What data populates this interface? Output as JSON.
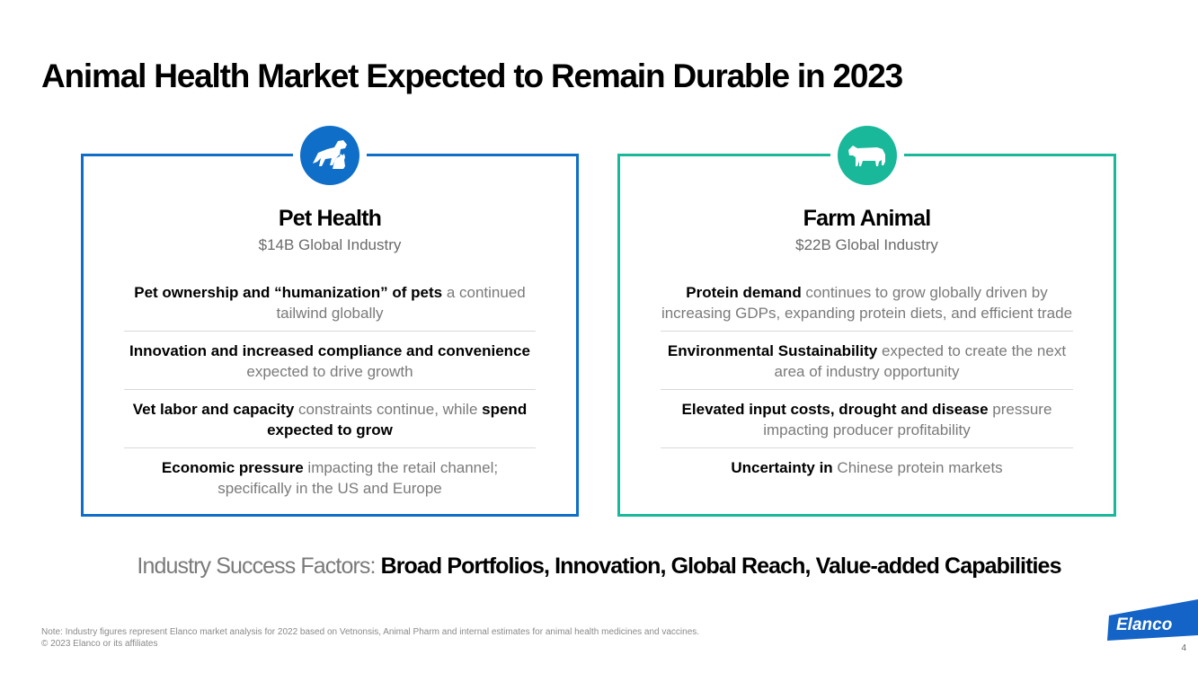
{
  "title": "Animal Health Market Expected to Remain Durable in 2023",
  "colors": {
    "pet_blue": "#0f6ec8",
    "farm_teal": "#19b89a",
    "elanco_blue": "#1463c6"
  },
  "cards": [
    {
      "icon": "dog-cat-icon",
      "title": "Pet Health",
      "subtitle": "$14B Global Industry",
      "items": [
        {
          "parts": [
            {
              "text": "Pet ownership and “humanization” of pets",
              "bold": true
            },
            {
              "text": " a continued tailwind globally",
              "bold": false
            }
          ]
        },
        {
          "parts": [
            {
              "text": "Innovation and increased compliance and convenience",
              "bold": true
            },
            {
              "text": " expected to drive growth",
              "bold": false
            }
          ]
        },
        {
          "parts": [
            {
              "text": "Vet labor and capacity",
              "bold": true
            },
            {
              "text": " constraints continue, while ",
              "bold": false
            },
            {
              "text": "spend expected to grow",
              "bold": true
            }
          ]
        },
        {
          "parts": [
            {
              "text": "Economic pressure",
              "bold": true
            },
            {
              "text": " impacting the retail channel; specifically in the US and Europe",
              "bold": false
            }
          ]
        }
      ]
    },
    {
      "icon": "cow-icon",
      "title": "Farm Animal",
      "subtitle": "$22B Global Industry",
      "items": [
        {
          "parts": [
            {
              "text": "Protein demand",
              "bold": true
            },
            {
              "text": " continues to grow globally driven by increasing GDPs, expanding protein diets, and efficient trade",
              "bold": false
            }
          ]
        },
        {
          "parts": [
            {
              "text": "Environmental Sustainability",
              "bold": true
            },
            {
              "text": " expected to create the next area of industry opportunity",
              "bold": false
            }
          ]
        },
        {
          "parts": [
            {
              "text": "Elevated input costs, drought and disease",
              "bold": true
            },
            {
              "text": " pressure impacting producer profitability",
              "bold": false
            }
          ]
        },
        {
          "parts": [
            {
              "text": "Uncertainty in",
              "bold": true
            },
            {
              "text": " Chinese protein markets",
              "bold": false
            }
          ]
        }
      ]
    }
  ],
  "success_factors": {
    "label": "Industry Success Factors:",
    "value": "Broad Portfolios, Innovation, Global Reach, Value-added Capabilities"
  },
  "footer": {
    "note": "Note: Industry figures represent Elanco market analysis for 2022 based on Vetnonsis, Animal Pharm and internal estimates for animal health medicines and vaccines.",
    "copyright": "© 2023 Elanco or its affiliates",
    "page_number": "4",
    "logo_text": "Elanco"
  }
}
